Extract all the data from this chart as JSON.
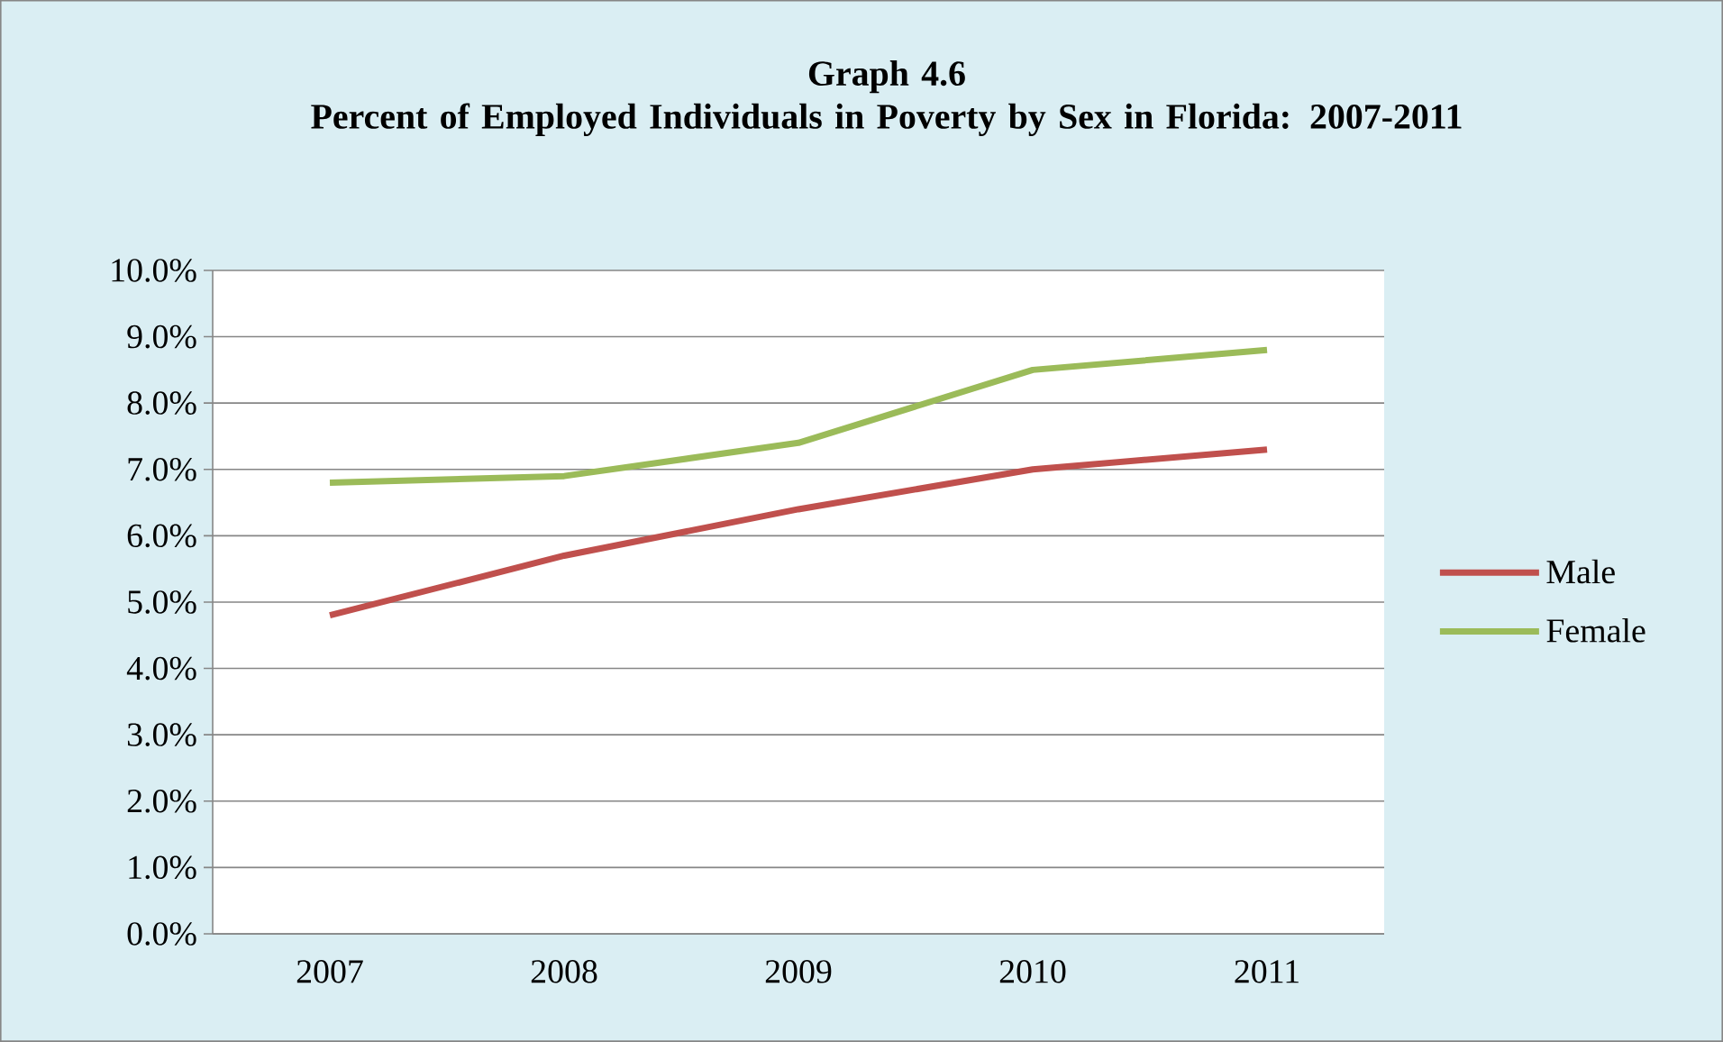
{
  "chart_data": {
    "type": "line",
    "title": "Graph 4.6",
    "subtitle": "Percent of Employed Individuals in Poverty by Sex in Florida: 2007-2011",
    "categories": [
      "2007",
      "2008",
      "2009",
      "2010",
      "2011"
    ],
    "series": [
      {
        "name": "Male",
        "color": "#c0504d",
        "values": [
          4.8,
          5.7,
          6.4,
          7.0,
          7.3
        ]
      },
      {
        "name": "Female",
        "color": "#9bbb59",
        "values": [
          6.8,
          6.9,
          7.4,
          8.5,
          8.8
        ]
      }
    ],
    "ylim": [
      0,
      10
    ],
    "yticks": [
      {
        "value": 0,
        "label": "0.0%"
      },
      {
        "value": 1,
        "label": "1.0%"
      },
      {
        "value": 2,
        "label": "2.0%"
      },
      {
        "value": 3,
        "label": "3.0%"
      },
      {
        "value": 4,
        "label": "4.0%"
      },
      {
        "value": 5,
        "label": "5.0%"
      },
      {
        "value": 6,
        "label": "6.0%"
      },
      {
        "value": 7,
        "label": "7.0%"
      },
      {
        "value": 8,
        "label": "8.0%"
      },
      {
        "value": 9,
        "label": "9.0%"
      },
      {
        "value": 10,
        "label": "10.0%"
      }
    ],
    "grid": "y",
    "legend": "right",
    "marker": "none",
    "line_style": "solid"
  }
}
